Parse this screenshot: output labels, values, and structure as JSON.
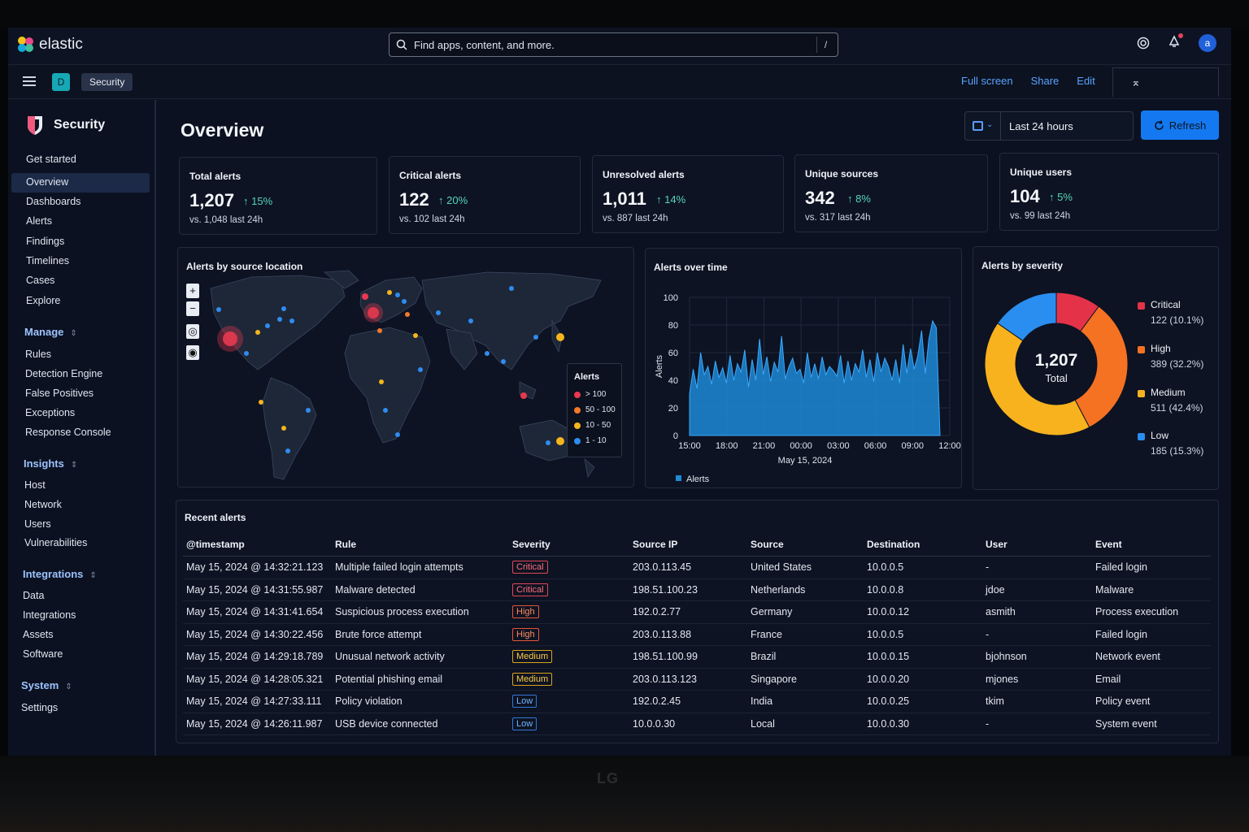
{
  "monitor_brand": "LG",
  "topbar": {
    "logo_text": "elastic",
    "search_placeholder": "Find apps, content, and more.",
    "search_shortcut": "/",
    "avatar_letter": "a"
  },
  "subbar": {
    "space_letter": "D",
    "breadcrumb": "Security",
    "links": {
      "full_screen": "Full screen",
      "share": "Share",
      "edit": "Edit"
    }
  },
  "sidebar": {
    "title": "Security",
    "items_top": [
      "Get started",
      "Overview",
      "Dashboards",
      "Alerts",
      "Findings",
      "Timelines",
      "Cases",
      "Explore"
    ],
    "active": "Overview",
    "manage": {
      "label": "Manage",
      "items": [
        "Rules",
        "Detection Engine",
        "False Positives",
        "Exceptions",
        "Response Console"
      ]
    },
    "insights": {
      "label": "Insights",
      "items": [
        "Host",
        "Network",
        "Users",
        "Vulnerabilities"
      ]
    },
    "integrations": {
      "label": "Integrations",
      "items": [
        "Data",
        "Integrations",
        "Assets",
        "Software"
      ]
    },
    "system": {
      "label": "System",
      "items": [
        "Settings"
      ]
    }
  },
  "main": {
    "title": "Overview",
    "date_range": "Last 24 hours",
    "refresh_label": "Refresh"
  },
  "kpis": [
    {
      "label": "Total alerts",
      "value": "1,207",
      "change": "15%",
      "sub": "vs. 1,048 last 24h"
    },
    {
      "label": "Critical alerts",
      "value": "122",
      "change": "20%",
      "sub": "vs. 102 last 24h"
    },
    {
      "label": "Unresolved alerts",
      "value": "1,011",
      "change": "14%",
      "sub": "vs. 887 last 24h"
    },
    {
      "label": "Unique sources",
      "value": "342",
      "change": "8%",
      "sub": "vs. 317 last 24h"
    },
    {
      "label": "Unique users",
      "value": "104",
      "change": "5%",
      "sub": "vs. 99 last 24h"
    }
  ],
  "map_panel": {
    "title": "Alerts by source location",
    "zoom_in": "+",
    "zoom_out": "−",
    "legend_title": "Alerts",
    "legend": [
      {
        "label": "> 100",
        "color": "#e8384f"
      },
      {
        "label": "50 - 100",
        "color": "#f27a29"
      },
      {
        "label": "10 - 50",
        "color": "#f5b51c"
      },
      {
        "label": "1 - 10",
        "color": "#2f8cf0"
      }
    ]
  },
  "chart_data": [
    {
      "type": "area",
      "title": "Alerts over time",
      "ylabel": "Alerts",
      "xlabel": "May 15, 2024",
      "ylim": [
        0,
        100
      ],
      "y_ticks": [
        "0",
        "20",
        "40",
        "60",
        "80",
        "100"
      ],
      "x_ticks": [
        "15:00",
        "18:00",
        "21:00",
        "00:00",
        "03:00",
        "06:00",
        "09:00",
        "12:00"
      ],
      "series": [
        {
          "name": "Alerts",
          "color": "#1f8ad6",
          "values": [
            30,
            48,
            34,
            60,
            44,
            50,
            37,
            54,
            42,
            49,
            38,
            58,
            40,
            52,
            46,
            62,
            35,
            55,
            40,
            70,
            44,
            57,
            39,
            53,
            46,
            72,
            41,
            50,
            56,
            45,
            48,
            38,
            60,
            42,
            52,
            41,
            57,
            44,
            50,
            47,
            43,
            58,
            38,
            54,
            40,
            52,
            46,
            62,
            42,
            55,
            39,
            60,
            46,
            56,
            50,
            40,
            55,
            38,
            66,
            45,
            63,
            48,
            58,
            76,
            45,
            70,
            83,
            78,
            0
          ]
        }
      ]
    },
    {
      "type": "pie",
      "title": "Alerts by severity",
      "center_value": "1,207",
      "center_label": "Total",
      "series": [
        {
          "name": "Critical",
          "value": 122,
          "label": "122 (10.1%)",
          "color": "#e43349"
        },
        {
          "name": "High",
          "value": 389,
          "label": "389 (32.2%)",
          "color": "#f57223"
        },
        {
          "name": "Medium",
          "value": 511,
          "label": "511 (42.4%)",
          "color": "#f7b21e"
        },
        {
          "name": "Low",
          "value": 185,
          "label": "185 (15.3%)",
          "color": "#2a8ef0"
        }
      ]
    }
  ],
  "recent_alerts": {
    "title": "Recent alerts",
    "columns": [
      "@timestamp",
      "Rule",
      "Severity",
      "Source IP",
      "Source",
      "Destination",
      "User",
      "Event"
    ],
    "rows": [
      [
        "May 15, 2024 @ 14:32:21.123",
        "Multiple failed login attempts",
        "Critical",
        "203.0.113.45",
        "United States",
        "10.0.0.5",
        "-",
        "Failed login"
      ],
      [
        "May 15, 2024 @ 14:31:55.987",
        "Malware detected",
        "Critical",
        "198.51.100.23",
        "Netherlands",
        "10.0.0.8",
        "jdoe",
        "Malware"
      ],
      [
        "May 15, 2024 @ 14:31:41.654",
        "Suspicious process execution",
        "High",
        "192.0.2.77",
        "Germany",
        "10.0.0.12",
        "asmith",
        "Process execution"
      ],
      [
        "May 15, 2024 @ 14:30:22.456",
        "Brute force attempt",
        "High",
        "203.0.113.88",
        "France",
        "10.0.0.5",
        "-",
        "Failed login"
      ],
      [
        "May 15, 2024 @ 14:29:18.789",
        "Unusual network activity",
        "Medium",
        "198.51.100.99",
        "Brazil",
        "10.0.0.15",
        "bjohnson",
        "Network event"
      ],
      [
        "May 15, 2024 @ 14:28:05.321",
        "Potential phishing email",
        "Medium",
        "203.0.113.123",
        "Singapore",
        "10.0.0.20",
        "mjones",
        "Email"
      ],
      [
        "May 15, 2024 @ 14:27:33.111",
        "Policy violation",
        "Low",
        "192.0.2.45",
        "India",
        "10.0.0.25",
        "tkim",
        "Policy event"
      ],
      [
        "May 15, 2024 @ 14:26:11.987",
        "USB device connected",
        "Low",
        "10.0.0.30",
        "Local",
        "10.0.0.30",
        "-",
        "System event"
      ]
    ]
  }
}
